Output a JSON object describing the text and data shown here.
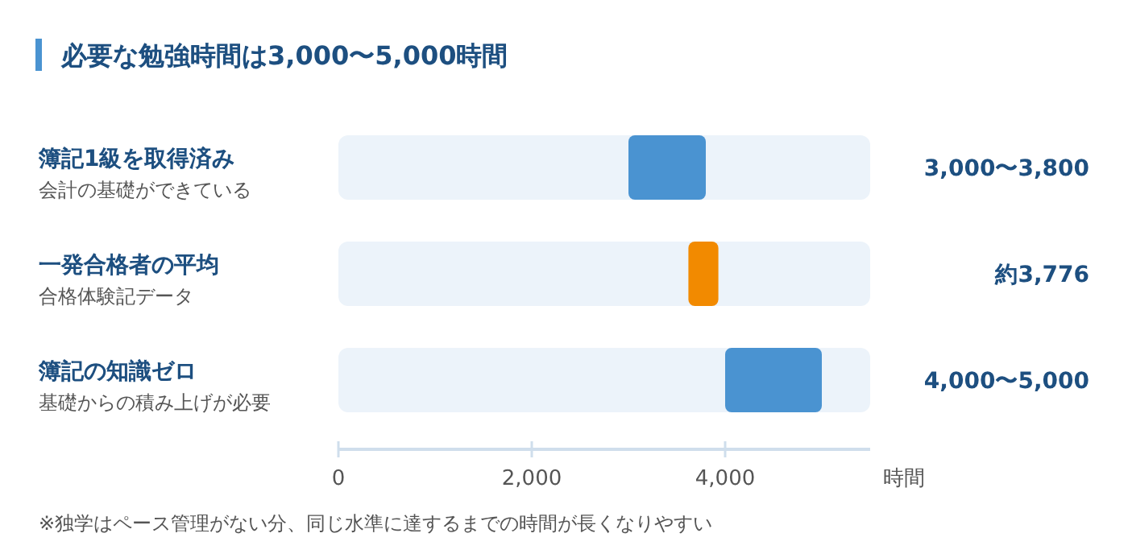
{
  "chart_data": {
    "type": "bar",
    "orientation": "horizontal",
    "title": "必要な勉強時間は3,000〜5,000時間",
    "categories": [
      "簿記1級を取得済み",
      "一発合格者の平均",
      "簿記の知識ゼロ"
    ],
    "base": [
      3000,
      3620,
      4000
    ],
    "values": [
      800,
      310,
      1000
    ],
    "colors": [
      "#4a93d1",
      "#f28a00",
      "#4a93d1"
    ],
    "xlabel": "時間",
    "xlim": [
      0,
      5500
    ],
    "xticks": [
      0,
      {
        "value": 2000,
        "label": "2,000"
      },
      {
        "value": 4000,
        "label": "4,000"
      }
    ],
    "grid": false,
    "annotations": [
      "会計の基礎ができている",
      "合格体験記データ",
      "基礎からの積み上げが必要",
      "3,000〜3,800",
      "約3,776",
      "4,000〜5,000",
      "※独学はペース管理がない分、同じ水準に達するまでの時間が長くなりやすい"
    ]
  }
}
